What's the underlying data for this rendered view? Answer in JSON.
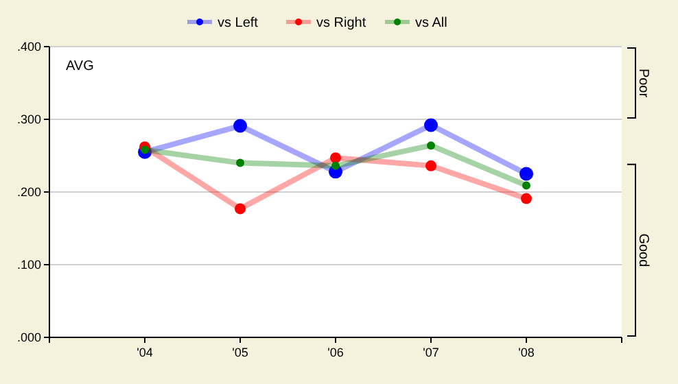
{
  "chart_data": {
    "type": "line",
    "ylabel": "AVG",
    "categories": [
      "'04",
      "'05",
      "'06",
      "'07",
      "'08"
    ],
    "series": [
      {
        "name": "vs Left",
        "color": "#0000ff",
        "values": [
          0.255,
          0.291,
          0.228,
          0.292,
          0.225
        ]
      },
      {
        "name": "vs Right",
        "color": "#ff0000",
        "values": [
          0.262,
          0.177,
          0.247,
          0.236,
          0.191
        ]
      },
      {
        "name": "vs All",
        "color": "#008000",
        "values": [
          0.258,
          0.24,
          0.236,
          0.264,
          0.209
        ]
      }
    ],
    "ylim": [
      0,
      0.4
    ],
    "yticks": [
      {
        "value": 0,
        "label": ".000"
      },
      {
        "value": 0.1,
        "label": ".100"
      },
      {
        "value": 0.2,
        "label": ".200"
      },
      {
        "value": 0.3,
        "label": ".300"
      },
      {
        "value": 0.4,
        "label": ".400"
      }
    ],
    "annotations": [
      "Poor",
      "Good"
    ],
    "grid": "y",
    "legend": "top",
    "marker": "circle",
    "line_style": "solid"
  }
}
